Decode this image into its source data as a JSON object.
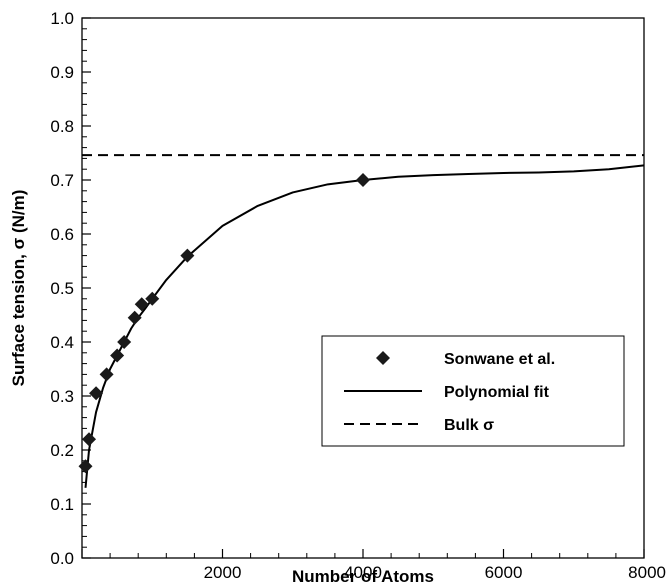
{
  "chart_data": {
    "type": "scatter",
    "xlabel": "Number of Atoms",
    "ylabel": "Surface tension, σ (N/m)",
    "xlim": [
      0,
      8000
    ],
    "ylim": [
      0,
      1.0
    ],
    "x_ticks": [
      2000,
      4000,
      6000,
      8000
    ],
    "x_tick_labels": [
      "2000",
      "4000",
      "6000",
      "8000"
    ],
    "y_ticks": [
      0,
      0.1,
      0.2,
      0.3,
      0.4,
      0.5,
      0.6,
      0.7,
      0.8,
      0.9,
      1.0
    ],
    "y_tick_labels": [
      "0.0",
      "0.1",
      "0.2",
      "0.3",
      "0.4",
      "0.5",
      "0.6",
      "0.7",
      "0.8",
      "0.9",
      "1.0"
    ],
    "grid": false,
    "legend_position": "center-right",
    "series": [
      {
        "name": "Sonwane et al.",
        "style": "markers",
        "marker": "diamond",
        "x": [
          50,
          100,
          200,
          350,
          500,
          600,
          750,
          850,
          1000,
          1500,
          4000
        ],
        "y": [
          0.17,
          0.22,
          0.305,
          0.34,
          0.375,
          0.4,
          0.445,
          0.47,
          0.48,
          0.56,
          0.7
        ]
      },
      {
        "name": "Polynomial fit",
        "style": "solid",
        "x": [
          50,
          100,
          200,
          300,
          400,
          500,
          600,
          700,
          800,
          900,
          1000,
          1200,
          1500,
          2000,
          2500,
          3000,
          3500,
          4000,
          4500,
          5000,
          5500,
          6000,
          6500,
          7000,
          7500,
          8000
        ],
        "y": [
          0.13,
          0.2,
          0.27,
          0.315,
          0.35,
          0.375,
          0.4,
          0.425,
          0.445,
          0.462,
          0.48,
          0.515,
          0.558,
          0.615,
          0.652,
          0.677,
          0.692,
          0.7,
          0.706,
          0.709,
          0.711,
          0.713,
          0.714,
          0.716,
          0.72,
          0.727
        ]
      },
      {
        "name": "Bulk σ",
        "style": "dashed",
        "x": [
          0,
          8000
        ],
        "y": [
          0.746,
          0.746
        ]
      }
    ]
  }
}
